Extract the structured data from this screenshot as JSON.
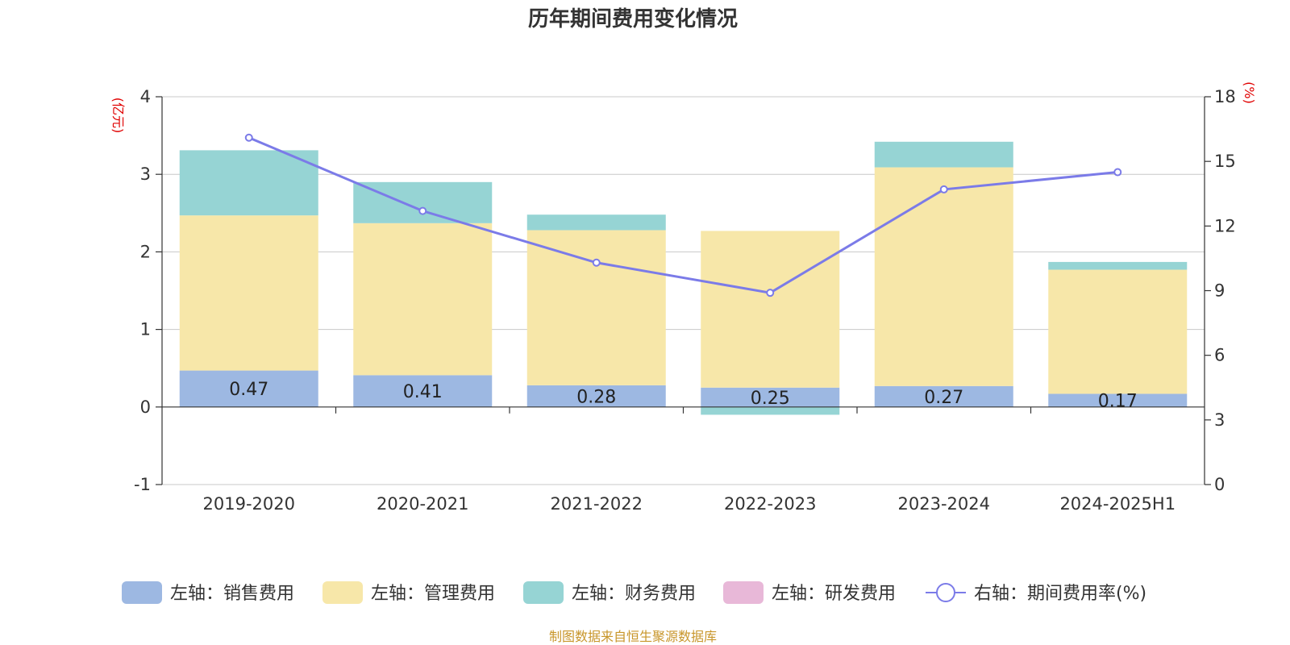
{
  "title": "历年期间费用变化情况",
  "source": "制图数据来自恒生聚源数据库",
  "colors": {
    "sales": "#9db8e2",
    "admin": "#f7e7a9",
    "finance": "#96d4d4",
    "rnd": "#e8b8d8",
    "rate": "#7b7be8"
  },
  "chart_data": {
    "type": "bar",
    "stacked": true,
    "title": "历年期间费用变化情况",
    "categories": [
      "2019-2020",
      "2020-2021",
      "2021-2022",
      "2022-2023",
      "2023-2024",
      "2024-2025H1"
    ],
    "y_left": {
      "unit": "(亿元)",
      "ylim": [
        -1,
        4
      ],
      "ticks": [
        "-1",
        "0",
        "1",
        "2",
        "3",
        "4"
      ]
    },
    "y_right": {
      "unit": "(%)",
      "ylim": [
        0,
        18
      ],
      "ticks": [
        "0",
        "3",
        "6",
        "9",
        "12",
        "15",
        "18"
      ]
    },
    "grid": true,
    "legend_position": "bottom",
    "series": [
      {
        "key": "sales",
        "name": "左轴：销售费用",
        "axis": "left",
        "type": "bar",
        "values": [
          0.47,
          0.41,
          0.28,
          0.25,
          0.27,
          0.17
        ],
        "labels": [
          "0.47",
          "0.41",
          "0.28",
          "0.25",
          "0.27",
          "0.17"
        ]
      },
      {
        "key": "admin",
        "name": "左轴：管理费用",
        "axis": "left",
        "type": "bar",
        "values": [
          2.0,
          1.96,
          2.0,
          2.02,
          2.82,
          1.6
        ]
      },
      {
        "key": "finance",
        "name": "左轴：财务费用",
        "axis": "left",
        "type": "bar",
        "values": [
          0.84,
          0.53,
          0.2,
          -0.1,
          0.33,
          0.1
        ]
      },
      {
        "key": "rnd",
        "name": "左轴：研发费用",
        "axis": "left",
        "type": "bar",
        "values": [
          0,
          0,
          0,
          0,
          0,
          0
        ]
      },
      {
        "key": "rate",
        "name": "右轴：期间费用率(%)",
        "axis": "right",
        "type": "line",
        "values": [
          16.1,
          12.7,
          10.3,
          8.9,
          13.7,
          14.5
        ]
      }
    ]
  }
}
